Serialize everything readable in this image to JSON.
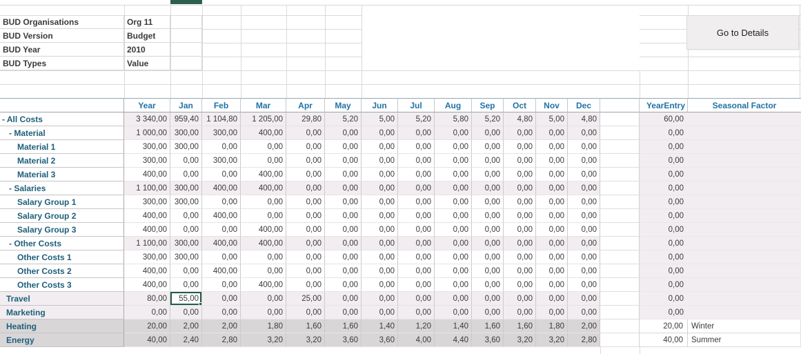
{
  "parameters": {
    "rows": [
      {
        "label": "BUD Organisations",
        "value": "Org 11"
      },
      {
        "label": "BUD Version",
        "value": "Budget"
      },
      {
        "label": "BUD Year",
        "value": "2010"
      },
      {
        "label": "BUD Types",
        "value": "Value"
      }
    ]
  },
  "details_button": {
    "label": "Go to Details"
  },
  "table": {
    "columns": [
      "Year",
      "Jan",
      "Feb",
      "Mar",
      "Apr",
      "May",
      "Jun",
      "Jul",
      "Aug",
      "Sep",
      "Oct",
      "Nov",
      "Dec"
    ],
    "year_entry_header": "YearEntry",
    "seasonal_factor_header": "Seasonal Factor",
    "selected_cell": {
      "row_label": "Travel",
      "column": "Jan",
      "value": "55,00"
    },
    "rows": [
      {
        "label": "- All Costs",
        "indent": 0,
        "style": "group",
        "values": [
          "3 340,00",
          "959,40",
          "1 104,80",
          "1 205,00",
          "29,80",
          "5,20",
          "5,00",
          "5,20",
          "5,80",
          "5,20",
          "4,80",
          "5,00",
          "4,80"
        ],
        "year_entry": "60,00",
        "seasonal_factor": ""
      },
      {
        "label": "- Material",
        "indent": 1,
        "style": "group",
        "values": [
          "1 000,00",
          "300,00",
          "300,00",
          "400,00",
          "0,00",
          "0,00",
          "0,00",
          "0,00",
          "0,00",
          "0,00",
          "0,00",
          "0,00",
          "0,00"
        ],
        "year_entry": "0,00",
        "seasonal_factor": ""
      },
      {
        "label": "Material 1",
        "indent": 2,
        "style": "leaf",
        "values": [
          "300,00",
          "300,00",
          "0,00",
          "0,00",
          "0,00",
          "0,00",
          "0,00",
          "0,00",
          "0,00",
          "0,00",
          "0,00",
          "0,00",
          "0,00"
        ],
        "year_entry": "0,00",
        "seasonal_factor": ""
      },
      {
        "label": "Material 2",
        "indent": 2,
        "style": "leaf",
        "values": [
          "300,00",
          "0,00",
          "300,00",
          "0,00",
          "0,00",
          "0,00",
          "0,00",
          "0,00",
          "0,00",
          "0,00",
          "0,00",
          "0,00",
          "0,00"
        ],
        "year_entry": "0,00",
        "seasonal_factor": ""
      },
      {
        "label": "Material 3",
        "indent": 2,
        "style": "leaf",
        "values": [
          "400,00",
          "0,00",
          "0,00",
          "400,00",
          "0,00",
          "0,00",
          "0,00",
          "0,00",
          "0,00",
          "0,00",
          "0,00",
          "0,00",
          "0,00"
        ],
        "year_entry": "0,00",
        "seasonal_factor": ""
      },
      {
        "label": "- Salaries",
        "indent": 1,
        "style": "group",
        "values": [
          "1 100,00",
          "300,00",
          "400,00",
          "400,00",
          "0,00",
          "0,00",
          "0,00",
          "0,00",
          "0,00",
          "0,00",
          "0,00",
          "0,00",
          "0,00"
        ],
        "year_entry": "0,00",
        "seasonal_factor": ""
      },
      {
        "label": "Salary Group 1",
        "indent": 2,
        "style": "leaf",
        "values": [
          "300,00",
          "300,00",
          "0,00",
          "0,00",
          "0,00",
          "0,00",
          "0,00",
          "0,00",
          "0,00",
          "0,00",
          "0,00",
          "0,00",
          "0,00"
        ],
        "year_entry": "0,00",
        "seasonal_factor": ""
      },
      {
        "label": "Salary Group 2",
        "indent": 2,
        "style": "leaf",
        "values": [
          "400,00",
          "0,00",
          "400,00",
          "0,00",
          "0,00",
          "0,00",
          "0,00",
          "0,00",
          "0,00",
          "0,00",
          "0,00",
          "0,00",
          "0,00"
        ],
        "year_entry": "0,00",
        "seasonal_factor": ""
      },
      {
        "label": "Salary Group 3",
        "indent": 2,
        "style": "leaf",
        "values": [
          "400,00",
          "0,00",
          "0,00",
          "400,00",
          "0,00",
          "0,00",
          "0,00",
          "0,00",
          "0,00",
          "0,00",
          "0,00",
          "0,00",
          "0,00"
        ],
        "year_entry": "0,00",
        "seasonal_factor": ""
      },
      {
        "label": "- Other Costs",
        "indent": 1,
        "style": "group",
        "values": [
          "1 100,00",
          "300,00",
          "400,00",
          "400,00",
          "0,00",
          "0,00",
          "0,00",
          "0,00",
          "0,00",
          "0,00",
          "0,00",
          "0,00",
          "0,00"
        ],
        "year_entry": "0,00",
        "seasonal_factor": ""
      },
      {
        "label": "Other Costs 1",
        "indent": 2,
        "style": "leaf",
        "values": [
          "300,00",
          "300,00",
          "0,00",
          "0,00",
          "0,00",
          "0,00",
          "0,00",
          "0,00",
          "0,00",
          "0,00",
          "0,00",
          "0,00",
          "0,00"
        ],
        "year_entry": "0,00",
        "seasonal_factor": ""
      },
      {
        "label": "Other Costs 2",
        "indent": 2,
        "style": "leaf",
        "values": [
          "400,00",
          "0,00",
          "400,00",
          "0,00",
          "0,00",
          "0,00",
          "0,00",
          "0,00",
          "0,00",
          "0,00",
          "0,00",
          "0,00",
          "0,00"
        ],
        "year_entry": "0,00",
        "seasonal_factor": ""
      },
      {
        "label": "Other Costs 3",
        "indent": 2,
        "style": "leaf",
        "values": [
          "400,00",
          "0,00",
          "0,00",
          "400,00",
          "0,00",
          "0,00",
          "0,00",
          "0,00",
          "0,00",
          "0,00",
          "0,00",
          "0,00",
          "0,00"
        ],
        "year_entry": "0,00",
        "seasonal_factor": ""
      },
      {
        "label": "Travel",
        "indent": 0,
        "style": "light",
        "selected_col": 1,
        "values": [
          "80,00",
          "55,00",
          "0,00",
          "0,00",
          "25,00",
          "0,00",
          "0,00",
          "0,00",
          "0,00",
          "0,00",
          "0,00",
          "0,00",
          "0,00"
        ],
        "year_entry": "0,00",
        "seasonal_factor": ""
      },
      {
        "label": "Marketing",
        "indent": 0,
        "style": "light",
        "values": [
          "0,00",
          "0,00",
          "0,00",
          "0,00",
          "0,00",
          "0,00",
          "0,00",
          "0,00",
          "0,00",
          "0,00",
          "0,00",
          "0,00",
          "0,00"
        ],
        "year_entry": "0,00",
        "seasonal_factor": ""
      },
      {
        "label": "Heating",
        "indent": 0,
        "style": "dark",
        "values": [
          "20,00",
          "2,00",
          "2,00",
          "1,80",
          "1,60",
          "1,60",
          "1,40",
          "1,20",
          "1,40",
          "1,60",
          "1,60",
          "1,80",
          "2,00"
        ],
        "year_entry": "20,00",
        "seasonal_factor": "Winter"
      },
      {
        "label": "Energy",
        "indent": 0,
        "style": "dark",
        "values": [
          "40,00",
          "2,40",
          "2,80",
          "3,20",
          "3,20",
          "3,60",
          "3,60",
          "4,00",
          "4,40",
          "3,60",
          "3,20",
          "3,20",
          "2,80"
        ],
        "year_entry": "40,00",
        "seasonal_factor": "Summer"
      }
    ]
  },
  "colors": {
    "header_blue": "#2172A4",
    "label_teal": "#1D5F7B",
    "selection_green": "#215C46",
    "band_pink": "#F2EDF0",
    "band_gray": "#D9D6D8",
    "gridline": "#DBD8DA"
  }
}
